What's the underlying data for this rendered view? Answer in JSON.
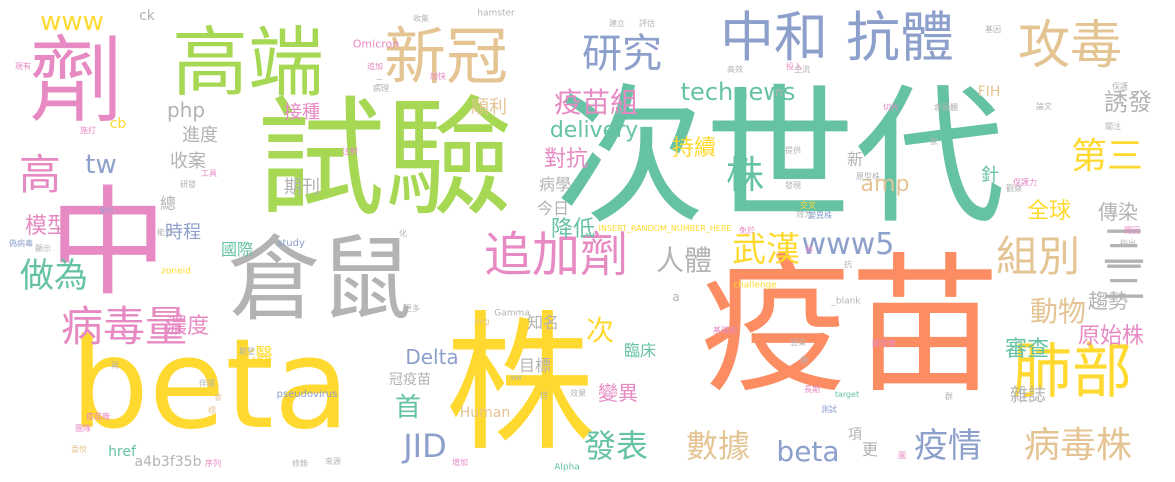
{
  "palette": {
    "green": "#a6d854",
    "teal": "#66c2a5",
    "orange": "#fc8d62",
    "blue": "#8da0cb",
    "pink": "#e78ac3",
    "yellow": "#ffd92f",
    "tan": "#e5c494",
    "gray": "#b3b3b3"
  },
  "words": [
    {
      "text": "次世代",
      "color": "teal"
    },
    {
      "text": "疫苗",
      "color": "orange"
    },
    {
      "text": "試驗",
      "color": "green"
    },
    {
      "text": "株",
      "color": "yellow"
    },
    {
      "text": "beta",
      "color": "yellow"
    },
    {
      "text": "倉鼠",
      "color": "gray"
    },
    {
      "text": "中",
      "color": "pink"
    },
    {
      "text": "劑",
      "color": "pink"
    },
    {
      "text": "高端",
      "color": "green"
    },
    {
      "text": "中和",
      "color": "blue"
    },
    {
      "text": "抗體",
      "color": "blue"
    },
    {
      "text": "新冠",
      "color": "tan"
    },
    {
      "text": "攻毒",
      "color": "tan"
    },
    {
      "text": "肺部",
      "color": "yellow"
    },
    {
      "text": "追加劑",
      "color": "pink"
    },
    {
      "text": "病毒量",
      "color": "pink"
    },
    {
      "text": "研究",
      "color": "blue"
    },
    {
      "text": "株",
      "color": "teal"
    },
    {
      "text": "組別",
      "color": "tan"
    },
    {
      "text": "三",
      "color": "gray"
    },
    {
      "text": "三",
      "color": "gray"
    },
    {
      "text": "病毒株",
      "color": "tan"
    },
    {
      "text": "疫情",
      "color": "blue"
    },
    {
      "text": "數據",
      "color": "tan"
    },
    {
      "text": "發表",
      "color": "teal"
    },
    {
      "text": "technews",
      "color": "teal"
    },
    {
      "text": "www5",
      "color": "blue"
    },
    {
      "text": "武漢",
      "color": "yellow"
    },
    {
      "text": "第三",
      "color": "yellow"
    },
    {
      "text": "做為",
      "color": "teal"
    },
    {
      "text": "高",
      "color": "pink"
    },
    {
      "text": "www",
      "color": "yellow"
    },
    {
      "text": "JID",
      "color": "blue"
    },
    {
      "text": "beta",
      "color": "blue"
    },
    {
      "text": "動物",
      "color": "tan"
    },
    {
      "text": "人體",
      "color": "gray"
    },
    {
      "text": "疫苗組",
      "color": "pink"
    },
    {
      "text": "delivery",
      "color": "teal"
    },
    {
      "text": "誘發",
      "color": "gray"
    },
    {
      "text": "全球",
      "color": "yellow"
    },
    {
      "text": "Delta",
      "color": "blue"
    },
    {
      "text": "次",
      "color": "yellow"
    },
    {
      "text": "首",
      "color": "teal"
    },
    {
      "text": "審查",
      "color": "teal"
    },
    {
      "text": "原始株",
      "color": "pink"
    },
    {
      "text": "趨勢",
      "color": "gray"
    },
    {
      "text": "傳染",
      "color": "gray"
    },
    {
      "text": "php",
      "color": "gray"
    },
    {
      "text": "tw",
      "color": "blue"
    },
    {
      "text": "持續",
      "color": "yellow"
    },
    {
      "text": "對抗",
      "color": "pink"
    },
    {
      "text": "降低",
      "color": "teal"
    },
    {
      "text": "今日",
      "color": "gray"
    },
    {
      "text": "病學",
      "color": "gray"
    },
    {
      "text": "amp",
      "color": "tan"
    },
    {
      "text": "模型",
      "color": "pink"
    },
    {
      "text": "濃度",
      "color": "pink"
    },
    {
      "text": "時程",
      "color": "blue"
    },
    {
      "text": "進度",
      "color": "gray"
    },
    {
      "text": "收案",
      "color": "gray"
    },
    {
      "text": "接種",
      "color": "pink"
    },
    {
      "text": "期刊",
      "color": "gray"
    },
    {
      "text": "國際",
      "color": "teal"
    },
    {
      "text": "北醫",
      "color": "yellow"
    },
    {
      "text": "知名",
      "color": "gray"
    },
    {
      "text": "目標",
      "color": "gray"
    },
    {
      "text": "變異",
      "color": "pink"
    },
    {
      "text": "臨床",
      "color": "teal"
    },
    {
      "text": "雜誌",
      "color": "gray"
    },
    {
      "text": "更",
      "color": "gray"
    },
    {
      "text": "冠疫苗",
      "color": "gray"
    },
    {
      "text": "Human",
      "color": "tan"
    },
    {
      "text": "a4b3f35b",
      "color": "gray"
    },
    {
      "text": "href",
      "color": "teal"
    },
    {
      "text": "順利",
      "color": "tan"
    },
    {
      "text": "FIH",
      "color": "tan"
    },
    {
      "text": "針",
      "color": "teal"
    },
    {
      "text": "新",
      "color": "gray"
    },
    {
      "text": "項",
      "color": "gray"
    },
    {
      "text": "總",
      "color": "gray"
    },
    {
      "text": "cb",
      "color": "yellow"
    },
    {
      "text": "ck",
      "color": "gray"
    },
    {
      "text": "n",
      "color": "gray"
    },
    {
      "text": "a",
      "color": "gray"
    },
    {
      "text": "src",
      "color": "blue"
    },
    {
      "text": "Omicron",
      "color": "pink"
    },
    {
      "text": "hamster",
      "color": "gray"
    },
    {
      "text": "pseudovirus",
      "color": "blue"
    },
    {
      "text": "INSERT_RANDOM_NUMBER_HERE",
      "color": "yellow"
    },
    {
      "text": "study",
      "color": "blue"
    },
    {
      "text": "Gamma",
      "color": "gray"
    },
    {
      "text": "Alpha",
      "color": "teal"
    },
    {
      "text": "challenge",
      "color": "yellow"
    },
    {
      "text": "zoneid",
      "color": "yellow"
    },
    {
      "text": "_blank",
      "color": "gray"
    },
    {
      "text": "target",
      "color": "teal"
    },
    {
      "text": "img",
      "color": "tan"
    },
    {
      "text": "aw",
      "color": "gray"
    },
    {
      "text": "現有",
      "color": "pink"
    },
    {
      "text": "施打",
      "color": "pink"
    },
    {
      "text": "研發",
      "color": "gray"
    },
    {
      "text": "工具",
      "color": "pink"
    },
    {
      "text": "注射",
      "color": "pink"
    },
    {
      "text": "病理",
      "color": "gray"
    },
    {
      "text": "追加",
      "color": "pink"
    },
    {
      "text": "二",
      "color": "gray"
    },
    {
      "text": "加快",
      "color": "pink"
    },
    {
      "text": "收集",
      "color": "gray"
    },
    {
      "text": "建立",
      "color": "gray"
    },
    {
      "text": "評估",
      "color": "gray"
    },
    {
      "text": "投入",
      "color": "pink"
    },
    {
      "text": "高效",
      "color": "gray"
    },
    {
      "text": "主流",
      "color": "gray"
    },
    {
      "text": "切片",
      "color": "pink"
    },
    {
      "text": "倉鼠體",
      "color": "gray"
    },
    {
      "text": "提供",
      "color": "gray"
    },
    {
      "text": "家",
      "color": "gray"
    },
    {
      "text": "基因",
      "color": "gray"
    },
    {
      "text": "論文",
      "color": "gray"
    },
    {
      "text": "保護",
      "color": "gray"
    },
    {
      "text": "關注",
      "color": "gray"
    },
    {
      "text": "觀察",
      "color": "gray"
    },
    {
      "text": "保護力",
      "color": "pink"
    },
    {
      "text": "原型株",
      "color": "gray"
    },
    {
      "text": "發現",
      "color": "gray"
    },
    {
      "text": "變異株",
      "color": "blue"
    },
    {
      "text": "效力",
      "color": "gray"
    },
    {
      "text": "交叉",
      "color": "yellow"
    },
    {
      "text": "閉因",
      "color": "pink"
    },
    {
      "text": "指出",
      "color": "gray"
    },
    {
      "text": "偽病毒",
      "color": "blue"
    },
    {
      "text": "顯示",
      "color": "gray"
    },
    {
      "text": "能力",
      "color": "gray"
    },
    {
      "text": "免於",
      "color": "pink"
    },
    {
      "text": "具",
      "color": "pink"
    },
    {
      "text": "化",
      "color": "gray"
    },
    {
      "text": "抗",
      "color": "gray"
    },
    {
      "text": "更多",
      "color": "gray"
    },
    {
      "text": "基礎劑",
      "color": "pink"
    },
    {
      "text": "開發案",
      "color": "pink"
    },
    {
      "text": "感染",
      "color": "gray"
    },
    {
      "text": "長期",
      "color": "pink"
    },
    {
      "text": "倍",
      "color": "gray"
    },
    {
      "text": "效果",
      "color": "gray"
    },
    {
      "text": "期望",
      "color": "gray"
    },
    {
      "text": "伴隨",
      "color": "gray"
    },
    {
      "text": "兩",
      "color": "gray"
    },
    {
      "text": "疫苗廠",
      "color": "pink"
    },
    {
      "text": "團隊",
      "color": "pink"
    },
    {
      "text": "喜悅",
      "color": "tan"
    },
    {
      "text": "修飾",
      "color": "gray"
    },
    {
      "text": "來源",
      "color": "gray"
    },
    {
      "text": "增加",
      "color": "pink"
    },
    {
      "text": "序列",
      "color": "pink"
    },
    {
      "text": "測試",
      "color": "blue"
    },
    {
      "text": "替",
      "color": "gray"
    },
    {
      "text": "會",
      "color": "tan"
    },
    {
      "text": "標",
      "color": "tan"
    },
    {
      "text": "群",
      "color": "gray"
    },
    {
      "text": "圖",
      "color": "pink"
    }
  ]
}
